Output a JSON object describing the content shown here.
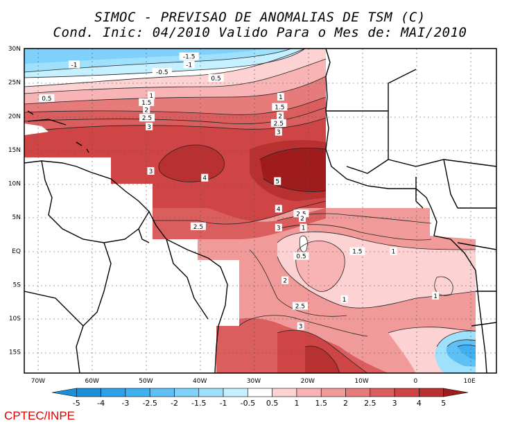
{
  "title_line1": "SIMOC - PREVISAO DE ANOMALIAS DE TSM (C)",
  "title_line2": "Cond. Inic: 04/2010   Valido Para o Mes de: MAI/2010",
  "credit": "CPTEC/INPE",
  "lat_labels": [
    "30N",
    "25N",
    "20N",
    "15N",
    "10N",
    "5N",
    "EQ",
    "5S",
    "10S",
    "15S"
  ],
  "lon_labels": [
    "70W",
    "60W",
    "50W",
    "40W",
    "30W",
    "20W",
    "10W",
    "0",
    "10E"
  ],
  "colorbar": {
    "labels": [
      "-5",
      "-4",
      "-3",
      "-2.5",
      "-2",
      "-1.5",
      "-1",
      "-0.5",
      "0.5",
      "1",
      "1.5",
      "2",
      "2.5",
      "3",
      "4",
      "5"
    ],
    "colors": [
      "#1c8fd9",
      "#2ea0e6",
      "#3fb0f0",
      "#5fc0f5",
      "#7fd0fa",
      "#9fe0fc",
      "#c5f0ff",
      "#ffffff",
      "#fdd2d2",
      "#f8b4b4",
      "#f09a9a",
      "#e57b7b",
      "#db5e5e",
      "#cf4545",
      "#b83030",
      "#9e1c1c"
    ]
  },
  "contour_labels": [
    {
      "t": "-1",
      "lon": -63.3,
      "lat": 27.6
    },
    {
      "t": "-1.5",
      "lon": -42.0,
      "lat": 28.8
    },
    {
      "t": "-1",
      "lon": -42.0,
      "lat": 27.6
    },
    {
      "t": "-0.5",
      "lon": -47.0,
      "lat": 26.5
    },
    {
      "t": "0.5",
      "lon": -37.0,
      "lat": 25.6
    },
    {
      "t": "0.5",
      "lon": -68.4,
      "lat": 22.6
    },
    {
      "t": "1",
      "lon": -49.0,
      "lat": 23.0
    },
    {
      "t": "1",
      "lon": -25.0,
      "lat": 22.8
    },
    {
      "t": "1.5",
      "lon": -49.9,
      "lat": 22.0
    },
    {
      "t": "1.5",
      "lon": -25.2,
      "lat": 21.3
    },
    {
      "t": "2",
      "lon": -49.9,
      "lat": 20.9
    },
    {
      "t": "2",
      "lon": -25.1,
      "lat": 20.0
    },
    {
      "t": "2.5",
      "lon": -49.8,
      "lat": 19.7
    },
    {
      "t": "2.5",
      "lon": -25.4,
      "lat": 18.9
    },
    {
      "t": "3",
      "lon": -49.4,
      "lat": 18.4
    },
    {
      "t": "3",
      "lon": -25.4,
      "lat": 17.6
    },
    {
      "t": "3",
      "lon": -49.1,
      "lat": 11.8
    },
    {
      "t": "4",
      "lon": -39.1,
      "lat": 10.8
    },
    {
      "t": "5",
      "lon": -25.6,
      "lat": 10.3
    },
    {
      "t": "4",
      "lon": -25.4,
      "lat": 6.2
    },
    {
      "t": "2.5",
      "lon": -40.3,
      "lat": 3.6
    },
    {
      "t": "3",
      "lon": -25.4,
      "lat": 3.4
    },
    {
      "t": "2.5",
      "lon": -21.2,
      "lat": 5.5
    },
    {
      "t": "2",
      "lon": -21.0,
      "lat": 4.8
    },
    {
      "t": "1",
      "lon": -20.8,
      "lat": 3.4
    },
    {
      "t": "1.5",
      "lon": -10.8,
      "lat": -0.1
    },
    {
      "t": "1",
      "lon": -4.1,
      "lat": -0.1
    },
    {
      "t": "0.5",
      "lon": -21.2,
      "lat": -0.8
    },
    {
      "t": "2",
      "lon": -24.2,
      "lat": -4.4
    },
    {
      "t": "1",
      "lon": -13.2,
      "lat": -7.2
    },
    {
      "t": "2.5",
      "lon": -21.4,
      "lat": -8.2
    },
    {
      "t": "1",
      "lon": 3.7,
      "lat": -6.7
    },
    {
      "t": "3",
      "lon": -21.3,
      "lat": -11.2
    }
  ]
}
